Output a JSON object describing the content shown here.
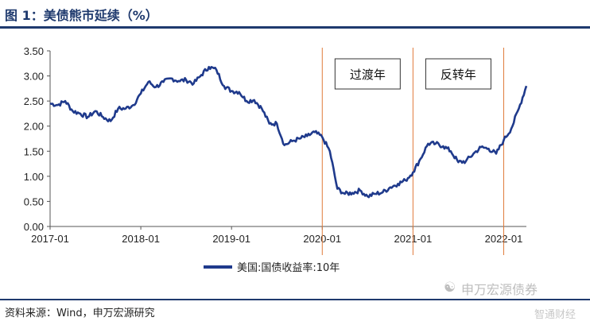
{
  "header": {
    "title": "图 1：美债熊市延续（%）"
  },
  "footer": {
    "source": "资料来源：Wind，申万宏源研究"
  },
  "watermark": {
    "text": "申万宏源债券",
    "icon": "wechat-icon"
  },
  "logo": {
    "text": "智通财经"
  },
  "chart_data": {
    "type": "line",
    "title": "",
    "xlabel": "",
    "ylabel": "",
    "ylim": [
      0,
      3.5
    ],
    "yticks": [
      0.0,
      0.5,
      1.0,
      1.5,
      2.0,
      2.5,
      3.0,
      3.5
    ],
    "ytick_labels": [
      "0.00",
      "0.50",
      "1.00",
      "1.50",
      "2.00",
      "2.50",
      "3.00",
      "3.50"
    ],
    "xlim": [
      "2017-01",
      "2022-04"
    ],
    "xticks": [
      "2017-01",
      "2018-01",
      "2019-01",
      "2020-01",
      "2021-01",
      "2022-01"
    ],
    "grid": false,
    "legend_position": "bottom-center",
    "series": [
      {
        "name": "美国:国债收益率:10年",
        "color": "#1f3a8c",
        "points": [
          [
            "2017-01",
            2.45
          ],
          [
            "2017-02",
            2.42
          ],
          [
            "2017-03",
            2.5
          ],
          [
            "2017-04",
            2.3
          ],
          [
            "2017-05",
            2.25
          ],
          [
            "2017-06",
            2.18
          ],
          [
            "2017-07",
            2.3
          ],
          [
            "2017-08",
            2.18
          ],
          [
            "2017-09",
            2.1
          ],
          [
            "2017-10",
            2.35
          ],
          [
            "2017-11",
            2.35
          ],
          [
            "2017-12",
            2.42
          ],
          [
            "2018-01",
            2.65
          ],
          [
            "2018-02",
            2.88
          ],
          [
            "2018-03",
            2.78
          ],
          [
            "2018-04",
            2.88
          ],
          [
            "2018-05",
            2.95
          ],
          [
            "2018-06",
            2.9
          ],
          [
            "2018-07",
            2.92
          ],
          [
            "2018-08",
            2.85
          ],
          [
            "2018-09",
            3.02
          ],
          [
            "2018-10",
            3.18
          ],
          [
            "2018-11",
            3.12
          ],
          [
            "2018-12",
            2.8
          ],
          [
            "2019-01",
            2.7
          ],
          [
            "2019-02",
            2.68
          ],
          [
            "2019-03",
            2.5
          ],
          [
            "2019-04",
            2.52
          ],
          [
            "2019-05",
            2.35
          ],
          [
            "2019-06",
            2.05
          ],
          [
            "2019-07",
            2.05
          ],
          [
            "2019-08",
            1.62
          ],
          [
            "2019-09",
            1.7
          ],
          [
            "2019-10",
            1.75
          ],
          [
            "2019-11",
            1.8
          ],
          [
            "2019-12",
            1.88
          ],
          [
            "2020-01",
            1.78
          ],
          [
            "2020-02",
            1.5
          ],
          [
            "2020-03",
            0.75
          ],
          [
            "2020-04",
            0.65
          ],
          [
            "2020-05",
            0.67
          ],
          [
            "2020-06",
            0.72
          ],
          [
            "2020-07",
            0.6
          ],
          [
            "2020-08",
            0.65
          ],
          [
            "2020-09",
            0.68
          ],
          [
            "2020-10",
            0.78
          ],
          [
            "2020-11",
            0.85
          ],
          [
            "2020-12",
            0.92
          ],
          [
            "2021-01",
            1.08
          ],
          [
            "2021-02",
            1.35
          ],
          [
            "2021-03",
            1.65
          ],
          [
            "2021-04",
            1.65
          ],
          [
            "2021-05",
            1.6
          ],
          [
            "2021-06",
            1.5
          ],
          [
            "2021-07",
            1.28
          ],
          [
            "2021-08",
            1.3
          ],
          [
            "2021-09",
            1.45
          ],
          [
            "2021-10",
            1.58
          ],
          [
            "2021-11",
            1.55
          ],
          [
            "2021-12",
            1.45
          ],
          [
            "2022-01",
            1.72
          ],
          [
            "2022-02",
            1.95
          ],
          [
            "2022-03",
            2.35
          ],
          [
            "2022-04",
            2.8
          ]
        ]
      }
    ],
    "vertical_markers": [
      "2020-01",
      "2021-01",
      "2022-01"
    ],
    "marker_color": "#e07b3a",
    "annotations": [
      {
        "text": "过渡年",
        "x_from": "2020-01",
        "x_to": "2021-01"
      },
      {
        "text": "反转年",
        "x_from": "2021-01",
        "x_to": "2022-01"
      }
    ]
  }
}
